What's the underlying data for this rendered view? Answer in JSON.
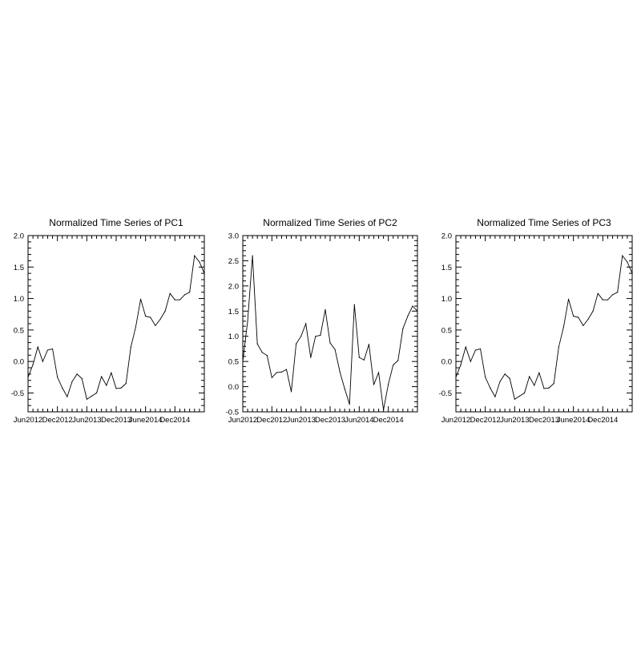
{
  "chart_data": [
    {
      "type": "line",
      "title": "Normalized Time Series of PC1",
      "xlabel": "",
      "ylabel": "",
      "x_ticks": [
        "Jun2012",
        "Dec2012",
        "Jun2013",
        "Dec2013",
        "June2014",
        "Dec2014"
      ],
      "y_ticks": [
        "2.0",
        "1.5",
        "1.0",
        "0.5",
        "0.0",
        "-0.5"
      ],
      "ylim": [
        -0.8,
        2.0
      ],
      "grid": false,
      "x": [
        "2012-06",
        "2012-07",
        "2012-08",
        "2012-09",
        "2012-10",
        "2012-11",
        "2012-12",
        "2013-01",
        "2013-02",
        "2013-03",
        "2013-04",
        "2013-05",
        "2013-06",
        "2013-07",
        "2013-08",
        "2013-09",
        "2013-10",
        "2013-11",
        "2013-12",
        "2014-01",
        "2014-02",
        "2014-03",
        "2014-04",
        "2014-05",
        "2014-06",
        "2014-07",
        "2014-08",
        "2014-09",
        "2014-10",
        "2014-11",
        "2014-12",
        "2015-01",
        "2015-02",
        "2015-03",
        "2015-04",
        "2015-05",
        "2015-06"
      ],
      "values": [
        -0.25,
        -0.05,
        0.23,
        0.0,
        0.18,
        0.2,
        -0.25,
        -0.42,
        -0.56,
        -0.32,
        -0.2,
        -0.27,
        -0.6,
        -0.55,
        -0.5,
        -0.24,
        -0.38,
        -0.18,
        -0.43,
        -0.42,
        -0.35,
        0.23,
        0.55,
        0.99,
        0.72,
        0.7,
        0.57,
        0.67,
        0.8,
        1.08,
        0.98,
        0.98,
        1.06,
        1.1,
        1.68,
        1.58,
        1.4
      ]
    },
    {
      "type": "line",
      "title": "Normalized Time Series of PC2",
      "xlabel": "",
      "ylabel": "",
      "x_ticks": [
        "Jun2012",
        "Dec2012",
        "Jun2013",
        "Dec2013",
        "Jun2014",
        "Dec2014"
      ],
      "y_ticks": [
        "3.0",
        "2.5",
        "2.0",
        "1.5",
        "1.0",
        "0.5",
        "0.0",
        "-0.5"
      ],
      "ylim": [
        -0.5,
        3.0
      ],
      "grid": false,
      "x": [
        "2012-06",
        "2012-07",
        "2012-08",
        "2012-09",
        "2012-10",
        "2012-11",
        "2012-12",
        "2013-01",
        "2013-02",
        "2013-03",
        "2013-04",
        "2013-05",
        "2013-06",
        "2013-07",
        "2013-08",
        "2013-09",
        "2013-10",
        "2013-11",
        "2013-12",
        "2014-01",
        "2014-02",
        "2014-03",
        "2014-04",
        "2014-05",
        "2014-06",
        "2014-07",
        "2014-08",
        "2014-09",
        "2014-10",
        "2014-11",
        "2014-12",
        "2015-01",
        "2015-02",
        "2015-03",
        "2015-04",
        "2015-05",
        "2015-06"
      ],
      "values": [
        0.5,
        1.3,
        2.6,
        0.85,
        0.68,
        0.62,
        0.18,
        0.28,
        0.29,
        0.34,
        -0.1,
        0.85,
        1.0,
        1.25,
        0.58,
        1.0,
        1.02,
        1.53,
        0.87,
        0.74,
        0.3,
        -0.04,
        -0.35,
        1.63,
        0.58,
        0.53,
        0.84,
        0.04,
        0.28,
        -0.46,
        0.05,
        0.43,
        0.52,
        1.15,
        1.4,
        1.6,
        1.5
      ]
    },
    {
      "type": "line",
      "title": "Normalized Time Series of PC3",
      "xlabel": "",
      "ylabel": "",
      "x_ticks": [
        "Jun2012",
        "Dec2012",
        "Jun2013",
        "Dec2013",
        "June2014",
        "Dec2014"
      ],
      "y_ticks": [
        "2.0",
        "1.5",
        "1.0",
        "0.5",
        "0.0",
        "-0.5"
      ],
      "ylim": [
        -0.8,
        2.0
      ],
      "grid": false,
      "x": [
        "2012-06",
        "2012-07",
        "2012-08",
        "2012-09",
        "2012-10",
        "2012-11",
        "2012-12",
        "2013-01",
        "2013-02",
        "2013-03",
        "2013-04",
        "2013-05",
        "2013-06",
        "2013-07",
        "2013-08",
        "2013-09",
        "2013-10",
        "2013-11",
        "2013-12",
        "2014-01",
        "2014-02",
        "2014-03",
        "2014-04",
        "2014-05",
        "2014-06",
        "2014-07",
        "2014-08",
        "2014-09",
        "2014-10",
        "2014-11",
        "2014-12",
        "2015-01",
        "2015-02",
        "2015-03",
        "2015-04",
        "2015-05",
        "2015-06"
      ],
      "values": [
        -0.25,
        -0.05,
        0.23,
        0.0,
        0.18,
        0.2,
        -0.25,
        -0.42,
        -0.56,
        -0.32,
        -0.2,
        -0.27,
        -0.6,
        -0.55,
        -0.5,
        -0.24,
        -0.38,
        -0.18,
        -0.43,
        -0.42,
        -0.35,
        0.23,
        0.55,
        0.99,
        0.72,
        0.7,
        0.57,
        0.67,
        0.8,
        1.08,
        0.98,
        0.98,
        1.06,
        1.1,
        1.68,
        1.58,
        1.4
      ]
    }
  ]
}
